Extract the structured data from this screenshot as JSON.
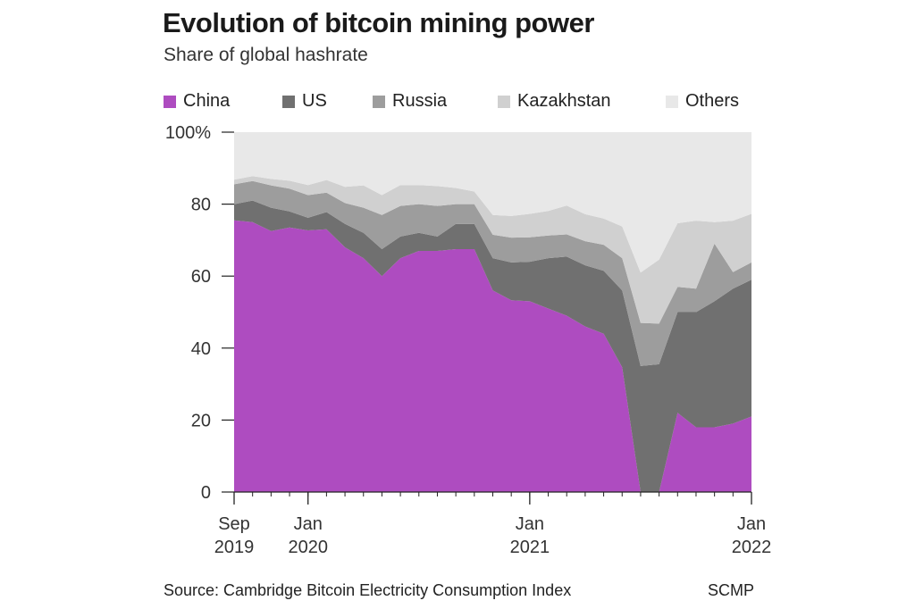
{
  "chart_data": {
    "type": "area",
    "stacked": true,
    "title": "Evolution of bitcoin mining power",
    "subtitle": "Share of global hashrate",
    "ylim": [
      0,
      100
    ],
    "yticks": [
      {
        "value": 0,
        "label": "0"
      },
      {
        "value": 20,
        "label": "20"
      },
      {
        "value": 40,
        "label": "40"
      },
      {
        "value": 60,
        "label": "60"
      },
      {
        "value": 80,
        "label": "80"
      },
      {
        "value": 100,
        "label": "100%"
      }
    ],
    "x": [
      "2019-09",
      "2019-10",
      "2019-11",
      "2019-12",
      "2020-01",
      "2020-02",
      "2020-03",
      "2020-04",
      "2020-05",
      "2020-06",
      "2020-07",
      "2020-08",
      "2020-09",
      "2020-10",
      "2020-11",
      "2020-12",
      "2021-01",
      "2021-02",
      "2021-03",
      "2021-04",
      "2021-05",
      "2021-06",
      "2021-07",
      "2021-08",
      "2021-09",
      "2021-10",
      "2021-11",
      "2021-12",
      "2022-01"
    ],
    "xticks": [
      {
        "index": 0,
        "line1": "Sep",
        "line2": "2019"
      },
      {
        "index": 4,
        "line1": "Jan",
        "line2": "2020"
      },
      {
        "index": 16,
        "line1": "Jan",
        "line2": "2021"
      },
      {
        "index": 28,
        "line1": "Jan",
        "line2": "2022"
      }
    ],
    "series": [
      {
        "name": "China",
        "color": "#ae4cc0",
        "values": [
          75.5,
          75,
          72.5,
          73.5,
          72.7,
          73,
          68,
          65,
          60,
          65,
          67,
          67,
          67.5,
          67.5,
          56,
          53.3,
          53,
          51,
          49,
          46,
          44,
          34.7,
          0,
          0,
          22,
          18,
          18,
          19,
          21
        ]
      },
      {
        "name": "US",
        "color": "#707070",
        "values": [
          4.5,
          6,
          6.5,
          4.5,
          3.5,
          4.8,
          6.5,
          7,
          7.5,
          6,
          5,
          4,
          7,
          7,
          9,
          10.5,
          11,
          14,
          16.4,
          17,
          17.5,
          21.3,
          35,
          35.5,
          28,
          32,
          35,
          37.5,
          38
        ]
      },
      {
        "name": "Russia",
        "color": "#9d9d9d",
        "values": [
          5.5,
          5.4,
          6.2,
          6.3,
          6.3,
          5.4,
          5.8,
          7,
          9.5,
          8.5,
          8,
          8.5,
          5.5,
          5.5,
          6.5,
          6.9,
          6.8,
          6.3,
          6.2,
          6.7,
          7.2,
          9,
          12,
          11.3,
          7,
          6.5,
          16,
          4.6,
          4.8
        ]
      },
      {
        "name": "Kazakhstan",
        "color": "#d0d0d0",
        "values": [
          1.3,
          1.4,
          1.8,
          2.2,
          2.8,
          3.5,
          4.5,
          6.2,
          5.5,
          5.8,
          5.3,
          5.5,
          4.5,
          3.5,
          5.5,
          6,
          6.5,
          6.8,
          8,
          7.5,
          7.3,
          8.8,
          14,
          17.8,
          17.7,
          18.9,
          6,
          14.3,
          13.5
        ]
      },
      {
        "name": "Others",
        "color": "#e8e8e8",
        "values": [
          13.2,
          12.2,
          13,
          13.5,
          14.7,
          13.3,
          15.2,
          14.8,
          17.5,
          14.7,
          14.7,
          15,
          15.5,
          16.5,
          23,
          23.3,
          22.7,
          21.9,
          20.4,
          22.8,
          24,
          26.2,
          39,
          35.4,
          25.3,
          24.6,
          25,
          24.6,
          22.7
        ]
      }
    ]
  },
  "source": "Source: Cambridge Bitcoin Electricity Consumption Index",
  "credit": "SCMP"
}
